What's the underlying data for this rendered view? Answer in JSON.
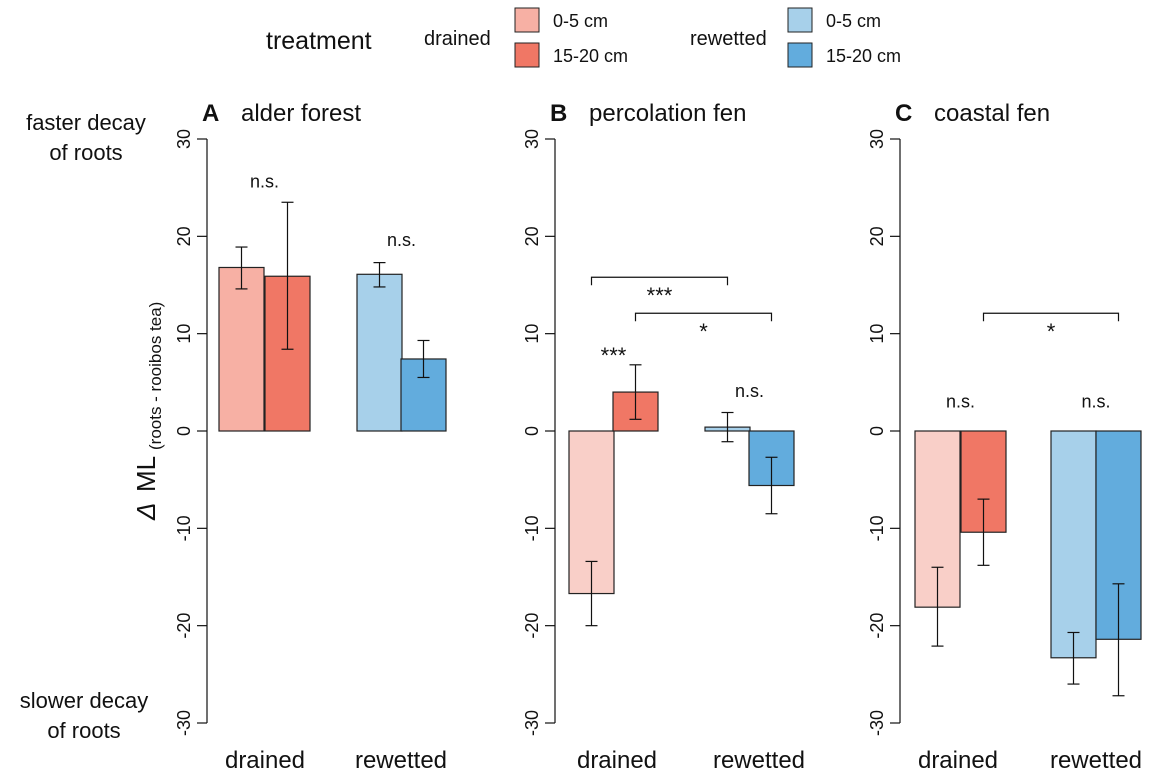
{
  "legend": {
    "title": "treatment",
    "groups": [
      {
        "label": "drained",
        "entries": [
          {
            "label": "0-5 cm",
            "color": "#f7b0a4"
          },
          {
            "label": "15-20 cm",
            "color": "#f07765"
          }
        ]
      },
      {
        "label": "rewetted",
        "entries": [
          {
            "label": "0-5 cm",
            "color": "#a7d0ea"
          },
          {
            "label": "15-20 cm",
            "color": "#62acdd"
          }
        ]
      }
    ]
  },
  "side_labels": {
    "top": [
      "faster decay",
      "of roots"
    ],
    "bottom": [
      "slower decay",
      "of roots"
    ]
  },
  "y_axis": {
    "label_main": "Δ ML",
    "label_sub": "(roots - rooibos tea)"
  },
  "chart_data": [
    {
      "type": "bar",
      "panel": "A",
      "title": "alder forest",
      "categories": [
        "drained",
        "rewetted"
      ],
      "series": [
        {
          "name": "0-5 cm",
          "colors": [
            "#f7b0a4",
            "#a7d0ea"
          ],
          "values": [
            16.8,
            16.1
          ],
          "error": [
            [
              14.6,
              18.9
            ],
            [
              14.8,
              17.3
            ]
          ]
        },
        {
          "name": "15-20 cm",
          "colors": [
            "#f07765",
            "#62acdd"
          ],
          "values": [
            15.9,
            7.4
          ],
          "error": [
            [
              8.4,
              23.5
            ],
            [
              5.5,
              9.3
            ]
          ]
        }
      ],
      "ylim": [
        -30,
        30
      ],
      "yticks": [
        -30,
        -20,
        -10,
        0,
        10,
        20,
        30
      ],
      "annotations": [
        {
          "text": "n.s.",
          "category": 0,
          "y": 25
        },
        {
          "text": "n.s.",
          "category": 1,
          "y": 19
        }
      ],
      "brackets": []
    },
    {
      "type": "bar",
      "panel": "B",
      "title": "percolation fen",
      "categories": [
        "drained",
        "rewetted"
      ],
      "series": [
        {
          "name": "0-5 cm",
          "colors": [
            "#f9cfc8",
            "#a7d0ea"
          ],
          "values": [
            -16.7,
            0.4
          ],
          "error": [
            [
              -20.0,
              -13.4
            ],
            [
              -1.1,
              1.9
            ]
          ]
        },
        {
          "name": "15-20 cm",
          "colors": [
            "#f07765",
            "#62acdd"
          ],
          "values": [
            4.0,
            -5.6
          ],
          "error": [
            [
              1.2,
              6.8
            ],
            [
              -8.5,
              -2.7
            ]
          ]
        }
      ],
      "ylim": [
        -30,
        30
      ],
      "yticks": [
        -30,
        -20,
        -10,
        0,
        10,
        20,
        30
      ],
      "annotations": [
        {
          "text": "***",
          "category": 0,
          "y": 8
        },
        {
          "text": "n.s.",
          "category": 1,
          "y": 3.5
        }
      ],
      "brackets": [
        {
          "from": [
            0,
            0
          ],
          "to": [
            1,
            0
          ],
          "y": 15.8,
          "label": "***"
        },
        {
          "from": [
            0,
            1
          ],
          "to": [
            1,
            1
          ],
          "y": 12.1,
          "label": "*"
        }
      ]
    },
    {
      "type": "bar",
      "panel": "C",
      "title": "coastal fen",
      "categories": [
        "drained",
        "rewetted"
      ],
      "series": [
        {
          "name": "0-5 cm",
          "colors": [
            "#f9cfc8",
            "#a7d0ea"
          ],
          "values": [
            -18.1,
            -23.3
          ],
          "error": [
            [
              -22.1,
              -14.0
            ],
            [
              -26.0,
              -20.7
            ]
          ]
        },
        {
          "name": "15-20 cm",
          "colors": [
            "#f07765",
            "#62acdd"
          ],
          "values": [
            -10.4,
            -21.4
          ],
          "error": [
            [
              -13.8,
              -7.0
            ],
            [
              -27.2,
              -15.7
            ]
          ]
        }
      ],
      "ylim": [
        -30,
        30
      ],
      "yticks": [
        -30,
        -20,
        -10,
        0,
        10,
        20,
        30
      ],
      "annotations": [
        {
          "text": "n.s.",
          "category": 0,
          "y": 2.4
        },
        {
          "text": "n.s.",
          "category": 1,
          "y": 2.4
        }
      ],
      "brackets": [
        {
          "from": [
            0,
            1
          ],
          "to": [
            1,
            1
          ],
          "y": 12.1,
          "label": "*"
        }
      ]
    }
  ]
}
